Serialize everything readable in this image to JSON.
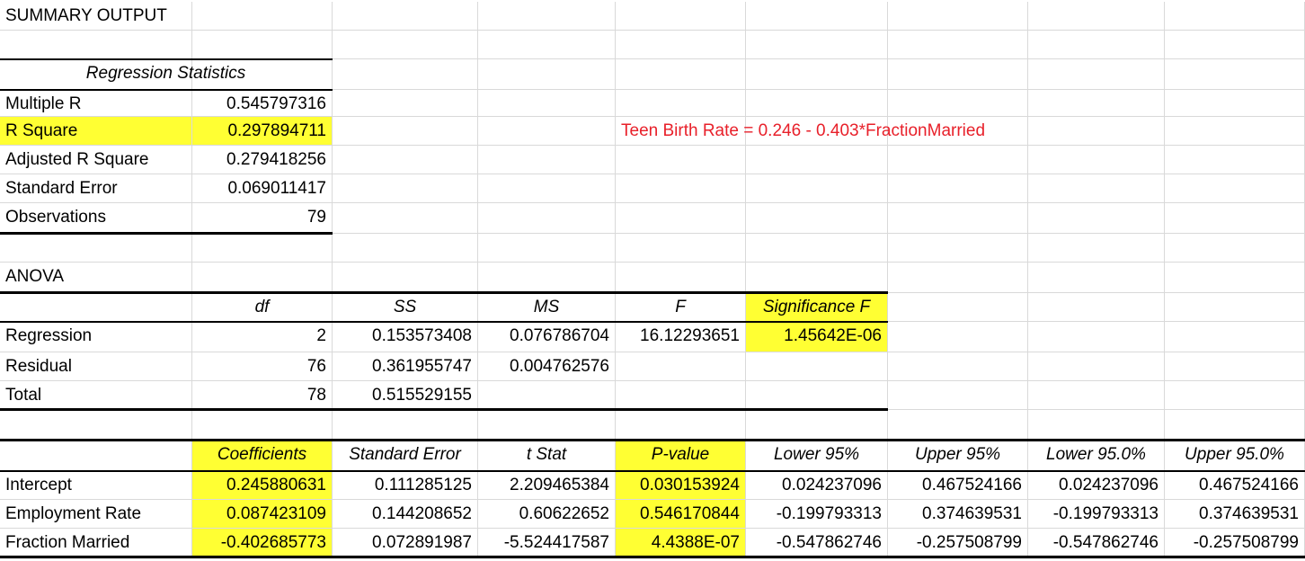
{
  "title": "SUMMARY OUTPUT",
  "regression_statistics": {
    "header": "Regression Statistics",
    "rows": [
      {
        "label": "Multiple R",
        "value": "0.545797316"
      },
      {
        "label": "R Square",
        "value": "0.297894711"
      },
      {
        "label": "Adjusted R Square",
        "value": "0.279418256"
      },
      {
        "label": "Standard Error",
        "value": "0.069011417"
      },
      {
        "label": "Observations",
        "value": "79"
      }
    ]
  },
  "equation": "Teen Birth Rate = 0.246 - 0.403*FractionMarried",
  "anova": {
    "label": "ANOVA",
    "headers": [
      "",
      "df",
      "SS",
      "MS",
      "F",
      "Significance F"
    ],
    "rows": [
      [
        "Regression",
        "2",
        "0.153573408",
        "0.076786704",
        "16.12293651",
        "1.45642E-06"
      ],
      [
        "Residual",
        "76",
        "0.361955747",
        "0.004762576",
        "",
        ""
      ],
      [
        "Total",
        "78",
        "0.515529155",
        "",
        "",
        ""
      ]
    ]
  },
  "coefficients": {
    "headers": [
      "",
      "Coefficients",
      "Standard Error",
      "t Stat",
      "P-value",
      "Lower 95%",
      "Upper 95%",
      "Lower 95.0%",
      "Upper 95.0%"
    ],
    "rows": [
      [
        "Intercept",
        "0.245880631",
        "0.111285125",
        "2.209465384",
        "0.030153924",
        "0.024237096",
        "0.467524166",
        "0.024237096",
        "0.467524166"
      ],
      [
        "Employment Rate",
        "0.087423109",
        "0.144208652",
        "0.60622652",
        "0.546170844",
        "-0.199793313",
        "0.374639531",
        "-0.199793313",
        "0.374639531"
      ],
      [
        "Fraction Married",
        "-0.402685773",
        "0.072891987",
        "-5.524417587",
        "4.4388E-07",
        "-0.547862746",
        "-0.257508799",
        "-0.547862746",
        "-0.257508799"
      ]
    ]
  },
  "colors": {
    "highlight": "#ffff33",
    "equation_text": "#e8202a",
    "gridline": "#d9d9d9"
  }
}
